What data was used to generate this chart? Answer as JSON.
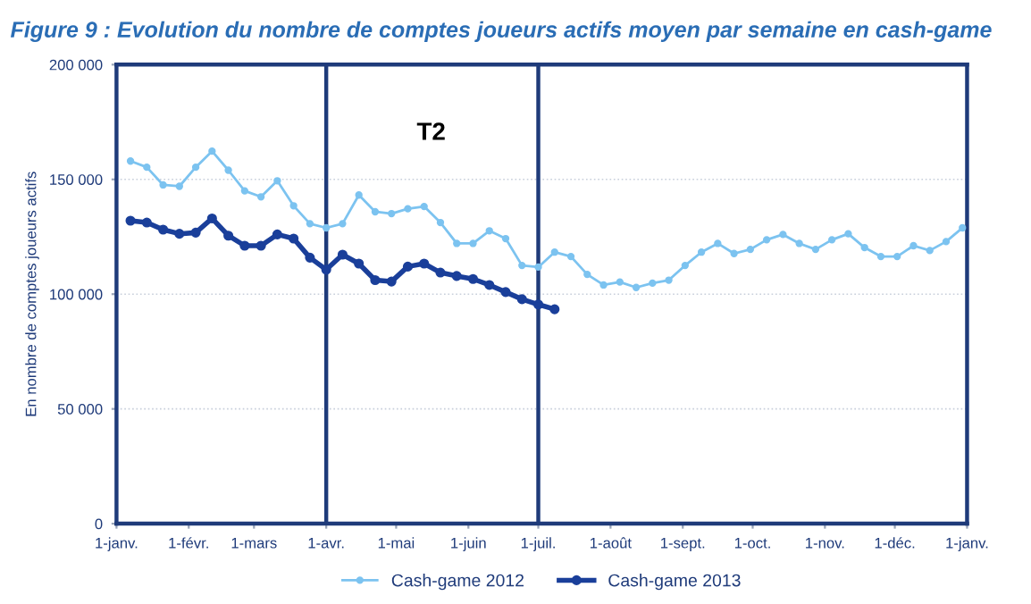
{
  "chart_data": {
    "type": "line",
    "title": "Figure 9 : Evolution du nombre de comptes joueurs actifs moyen par semaine en cash-game",
    "ylabel": "En nombre de comptes joueurs actifs",
    "series": [
      {
        "name": "Cash-game 2012",
        "color": "#7cc3f0",
        "x": [
          "2013-01-07",
          "2013-01-14",
          "2013-01-21",
          "2013-01-28",
          "2013-02-04",
          "2013-02-11",
          "2013-02-18",
          "2013-02-25",
          "2013-03-04",
          "2013-03-11",
          "2013-03-18",
          "2013-03-25",
          "2013-04-01",
          "2013-04-08",
          "2013-04-15",
          "2013-04-22",
          "2013-04-29",
          "2013-05-06",
          "2013-05-13",
          "2013-05-20",
          "2013-05-27",
          "2013-06-03",
          "2013-06-10",
          "2013-06-17",
          "2013-06-24",
          "2013-07-01",
          "2013-07-08",
          "2013-07-15",
          "2013-07-22",
          "2013-07-29",
          "2013-08-05",
          "2013-08-12",
          "2013-08-19",
          "2013-08-26",
          "2013-09-02",
          "2013-09-09",
          "2013-09-16",
          "2013-09-23",
          "2013-09-30",
          "2013-10-07",
          "2013-10-14",
          "2013-10-21",
          "2013-10-28",
          "2013-11-04",
          "2013-11-11",
          "2013-11-18",
          "2013-11-25",
          "2013-12-02",
          "2013-12-09",
          "2013-12-16",
          "2013-12-23",
          "2013-12-30"
        ],
        "values": [
          158000,
          155300,
          147600,
          147000,
          155300,
          162300,
          154000,
          145000,
          142400,
          149400,
          138500,
          130700,
          128900,
          130700,
          143200,
          135900,
          135100,
          137200,
          138200,
          131200,
          122100,
          122100,
          127600,
          124200,
          112500,
          111800,
          118300,
          116400,
          108600,
          104000,
          105300,
          102900,
          104800,
          106100,
          112500,
          118300,
          122100,
          117700,
          119500,
          123700,
          126000,
          122100,
          119500,
          123700,
          126300,
          120300,
          116400,
          116400,
          121100,
          119000,
          122900,
          128900
        ]
      },
      {
        "name": "Cash-game 2013",
        "color": "#1a3f9a",
        "x": [
          "2013-01-07",
          "2013-01-14",
          "2013-01-21",
          "2013-01-28",
          "2013-02-04",
          "2013-02-11",
          "2013-02-18",
          "2013-02-25",
          "2013-03-04",
          "2013-03-11",
          "2013-03-18",
          "2013-03-25",
          "2013-04-01",
          "2013-04-08",
          "2013-04-15",
          "2013-04-22",
          "2013-04-29",
          "2013-05-06",
          "2013-05-13",
          "2013-05-20",
          "2013-05-27",
          "2013-06-03",
          "2013-06-10",
          "2013-06-17",
          "2013-06-24",
          "2013-07-01",
          "2013-07-08"
        ],
        "values": [
          132000,
          131200,
          128100,
          126300,
          126800,
          133000,
          125500,
          121100,
          121100,
          126000,
          124200,
          115900,
          110700,
          117200,
          113300,
          106100,
          105500,
          112000,
          113300,
          109400,
          107900,
          106600,
          104000,
          100900,
          97800,
          95500,
          93400
        ]
      }
    ],
    "xlim": [
      "2013-01-01",
      "2014-01-01"
    ],
    "xticks": [
      {
        "value": "2013-01-01",
        "label": "1-janv."
      },
      {
        "value": "2013-02-01",
        "label": "1-févr."
      },
      {
        "value": "2013-03-01",
        "label": "1-mars"
      },
      {
        "value": "2013-04-01",
        "label": "1-avr."
      },
      {
        "value": "2013-05-01",
        "label": "1-mai"
      },
      {
        "value": "2013-06-01",
        "label": "1-juin"
      },
      {
        "value": "2013-07-01",
        "label": "1-juil."
      },
      {
        "value": "2013-08-01",
        "label": "1-août"
      },
      {
        "value": "2013-09-01",
        "label": "1-sept."
      },
      {
        "value": "2013-10-01",
        "label": "1-oct."
      },
      {
        "value": "2013-11-01",
        "label": "1-nov."
      },
      {
        "value": "2013-12-01",
        "label": "1-déc."
      },
      {
        "value": "2014-01-01",
        "label": "1-janv."
      }
    ],
    "ylim": [
      0,
      200000
    ],
    "yticks": [
      {
        "value": 0,
        "label": "0"
      },
      {
        "value": 50000,
        "label": "50 000"
      },
      {
        "value": 100000,
        "label": "100 000"
      },
      {
        "value": 150000,
        "label": "150 000"
      },
      {
        "value": 200000,
        "label": "200 000"
      }
    ],
    "ref_lines": [
      {
        "axis": "x",
        "value": "2013-04-01",
        "color": "#1f3b7a"
      },
      {
        "axis": "x",
        "value": "2013-07-01",
        "color": "#1f3b7a"
      }
    ],
    "annotations": [
      "T2"
    ],
    "grid": "y",
    "legend": "bottom",
    "marker": "circle",
    "line_style": "solid"
  }
}
